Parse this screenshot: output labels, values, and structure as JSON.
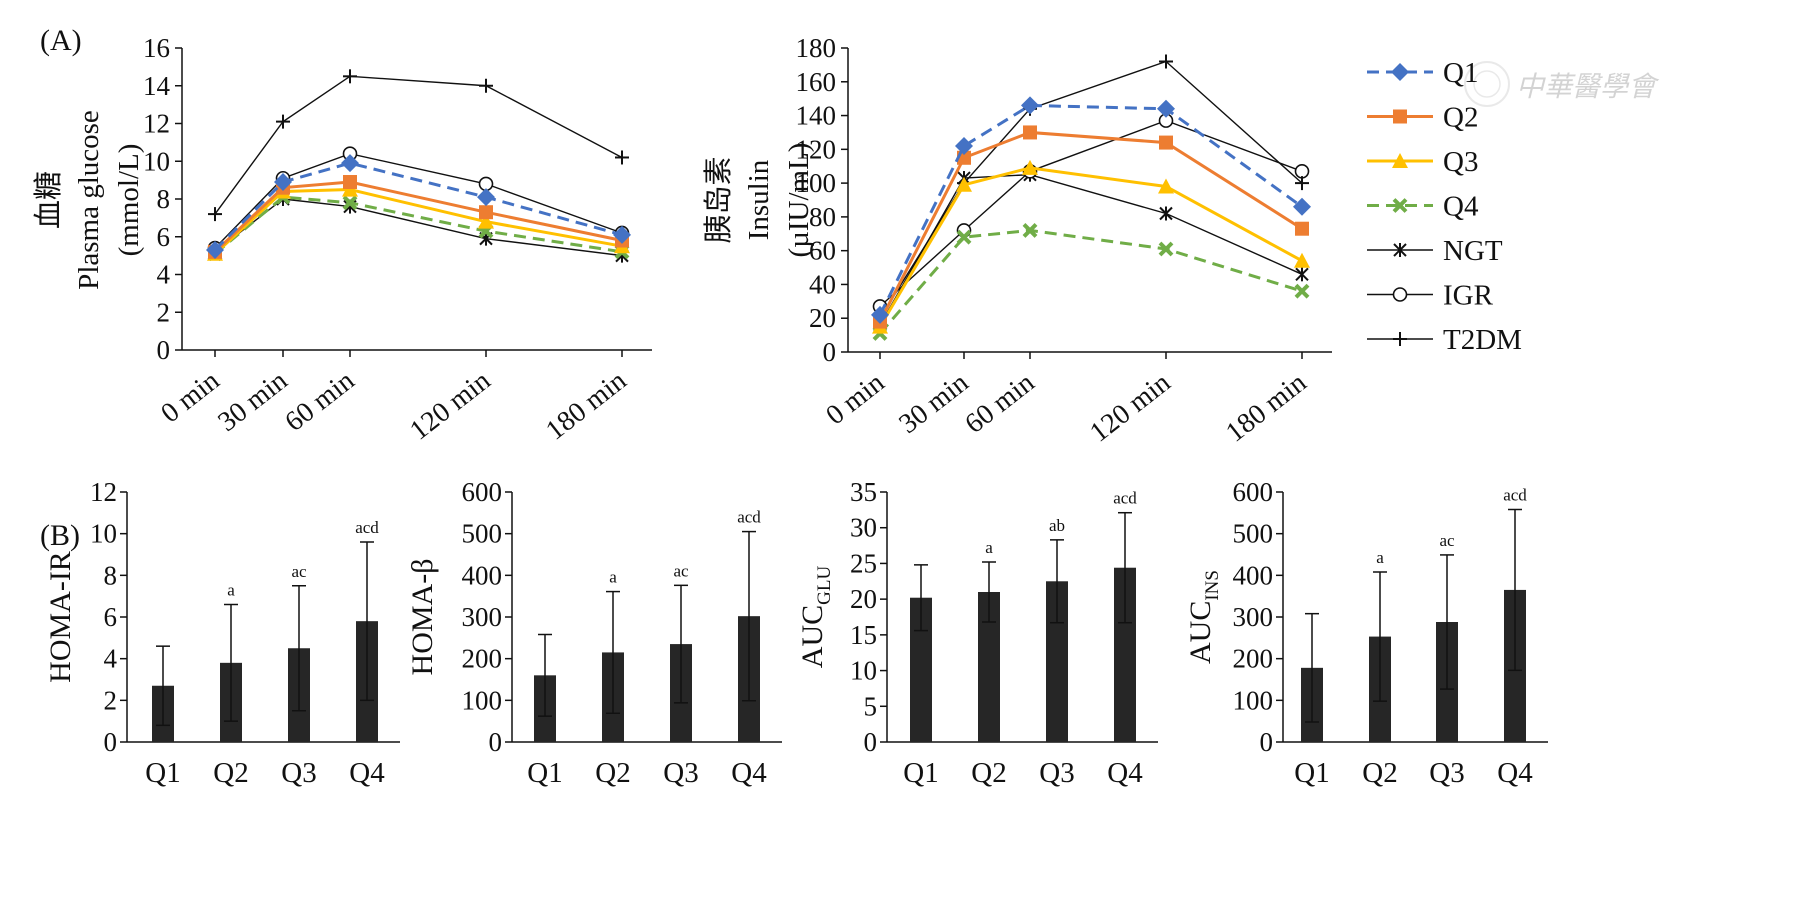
{
  "figure": {
    "panel_a_label": "(A)",
    "panel_b_label": "(B)",
    "watermark_text": "中華醫學會"
  },
  "colors": {
    "Q1": "#4472C4",
    "Q2": "#ED7D31",
    "Q3": "#FFC000",
    "Q4": "#70AD47",
    "NGT": "#111111",
    "IGR": "#111111",
    "T2DM": "#111111",
    "bar": "#262626",
    "axis": "#111111"
  },
  "chart_data": [
    {
      "id": "glucose",
      "type": "line",
      "ylabel_cn": "血糖",
      "ylabel": "Plasma glucose",
      "yunit": "(mmol/L)",
      "ylim": [
        0,
        16
      ],
      "yticks": [
        0,
        2,
        4,
        6,
        8,
        10,
        12,
        14,
        16
      ],
      "x": [
        0,
        30,
        60,
        120,
        180
      ],
      "categories": [
        "0 min",
        "30 min",
        "60 min",
        "120 min",
        "180 min"
      ],
      "grid": false,
      "series": [
        {
          "name": "Q1",
          "values": [
            5.3,
            8.9,
            9.9,
            8.1,
            6.1
          ],
          "style": "dashed",
          "marker": "diamond"
        },
        {
          "name": "Q2",
          "values": [
            5.2,
            8.6,
            8.9,
            7.3,
            5.8
          ],
          "style": "solid",
          "marker": "square"
        },
        {
          "name": "Q3",
          "values": [
            5.1,
            8.4,
            8.5,
            6.8,
            5.5
          ],
          "style": "solid",
          "marker": "triangle"
        },
        {
          "name": "Q4",
          "values": [
            5.1,
            8.1,
            7.8,
            6.3,
            5.2
          ],
          "style": "dashed",
          "marker": "x"
        },
        {
          "name": "NGT",
          "values": [
            5.2,
            8.0,
            7.6,
            5.9,
            5.0
          ],
          "style": "solid",
          "marker": "asterisk"
        },
        {
          "name": "IGR",
          "values": [
            5.4,
            9.1,
            10.4,
            8.8,
            6.2
          ],
          "style": "solid",
          "marker": "circle"
        },
        {
          "name": "T2DM",
          "values": [
            7.2,
            12.1,
            14.5,
            14.0,
            10.2
          ],
          "style": "solid",
          "marker": "plus"
        }
      ]
    },
    {
      "id": "insulin",
      "type": "line",
      "ylabel_cn": "胰岛素",
      "ylabel": "Insulin",
      "yunit": "(µIU/mL)",
      "ylim": [
        0,
        180
      ],
      "yticks": [
        0,
        20,
        40,
        60,
        80,
        100,
        120,
        140,
        160,
        180
      ],
      "x": [
        0,
        30,
        60,
        120,
        180
      ],
      "categories": [
        "0 min",
        "30 min",
        "60 min",
        "120 min",
        "180 min"
      ],
      "grid": false,
      "legend": "right",
      "series": [
        {
          "name": "Q1",
          "values": [
            22,
            122,
            146,
            144,
            86
          ],
          "style": "dashed",
          "marker": "diamond"
        },
        {
          "name": "Q2",
          "values": [
            18,
            115,
            130,
            124,
            73
          ],
          "style": "solid",
          "marker": "square"
        },
        {
          "name": "Q3",
          "values": [
            15,
            99,
            109,
            98,
            54
          ],
          "style": "solid",
          "marker": "triangle"
        },
        {
          "name": "Q4",
          "values": [
            11,
            68,
            72,
            61,
            36
          ],
          "style": "dashed",
          "marker": "x"
        },
        {
          "name": "NGT",
          "values": [
            16,
            103,
            105,
            82,
            46
          ],
          "style": "solid",
          "marker": "asterisk"
        },
        {
          "name": "IGR",
          "values": [
            27,
            72,
            107,
            137,
            107
          ],
          "style": "solid",
          "marker": "circle"
        },
        {
          "name": "T2DM",
          "values": [
            20,
            100,
            144,
            172,
            100
          ],
          "style": "solid",
          "marker": "plus"
        }
      ]
    },
    {
      "id": "homa_ir",
      "type": "bar",
      "ylabel": "HOMA-IR",
      "ylim": [
        0,
        12
      ],
      "yticks": [
        0,
        2,
        4,
        6,
        8,
        10,
        12
      ],
      "categories": [
        "Q1",
        "Q2",
        "Q3",
        "Q4"
      ],
      "values": [
        2.7,
        3.8,
        4.5,
        5.8
      ],
      "errors": [
        1.9,
        2.8,
        3.0,
        3.8
      ],
      "annotations": [
        "",
        "a",
        "ac",
        "acd"
      ]
    },
    {
      "id": "homa_beta",
      "type": "bar",
      "ylabel": "HOMA-β",
      "ylim": [
        0,
        600
      ],
      "yticks": [
        0,
        100,
        200,
        300,
        400,
        500,
        600
      ],
      "categories": [
        "Q1",
        "Q2",
        "Q3",
        "Q4"
      ],
      "values": [
        160,
        215,
        235,
        302
      ],
      "errors": [
        98,
        146,
        141,
        203
      ],
      "annotations": [
        "",
        "a",
        "ac",
        "acd"
      ]
    },
    {
      "id": "auc_glu",
      "type": "bar",
      "ylabel": "AUC",
      "ylabel_sub": "GLU",
      "ylim": [
        0,
        35
      ],
      "yticks": [
        0,
        5,
        10,
        15,
        20,
        25,
        30,
        35
      ],
      "categories": [
        "Q1",
        "Q2",
        "Q3",
        "Q4"
      ],
      "values": [
        20.2,
        21.0,
        22.5,
        24.4
      ],
      "errors": [
        4.6,
        4.2,
        5.8,
        7.7
      ],
      "annotations": [
        "",
        "a",
        "ab",
        "acd"
      ]
    },
    {
      "id": "auc_ins",
      "type": "bar",
      "ylabel": "AUC",
      "ylabel_sub": "INS",
      "ylim": [
        0,
        600
      ],
      "yticks": [
        0,
        100,
        200,
        300,
        400,
        500,
        600
      ],
      "categories": [
        "Q1",
        "Q2",
        "Q3",
        "Q4"
      ],
      "values": [
        178,
        253,
        288,
        365
      ],
      "errors": [
        130,
        155,
        161,
        193
      ],
      "annotations": [
        "",
        "a",
        "ac",
        "acd"
      ]
    }
  ]
}
